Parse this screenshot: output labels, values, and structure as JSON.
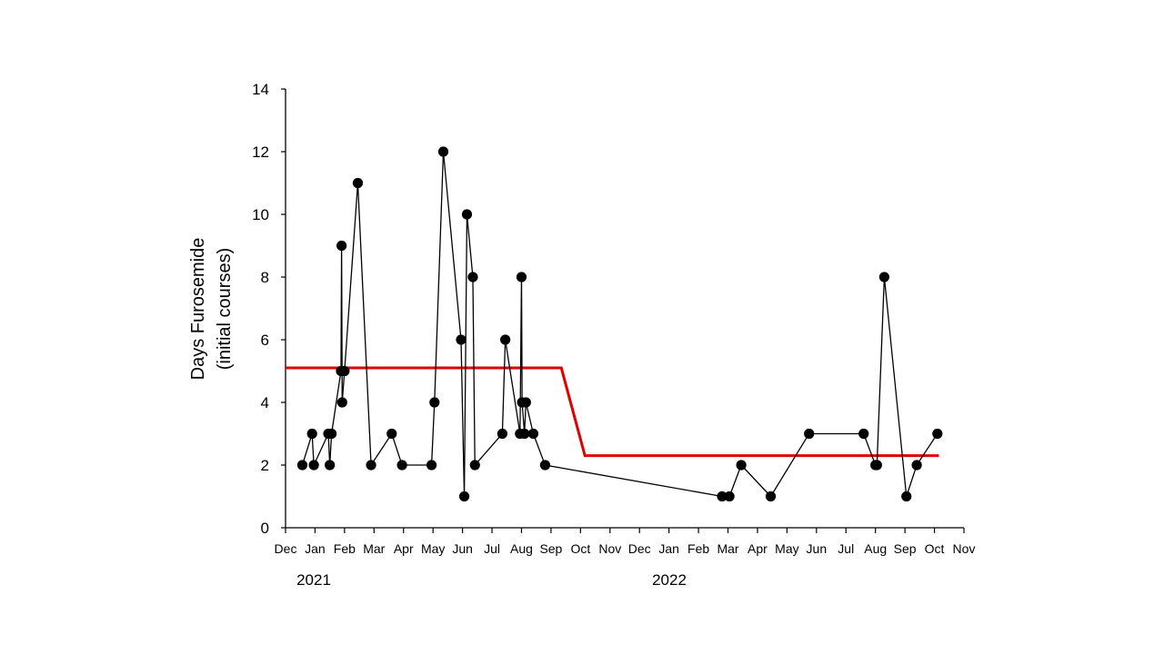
{
  "chart_data": {
    "type": "line",
    "title": "",
    "ylabel_line1": "Days Furosemide",
    "ylabel_line2": "(initial courses)",
    "xlabel": "",
    "ylim": [
      0,
      14
    ],
    "yticks": [
      0,
      2,
      4,
      6,
      8,
      10,
      12,
      14
    ],
    "x_ticks": [
      "Dec",
      "Jan",
      "Feb",
      "Mar",
      "Apr",
      "May",
      "Jun",
      "Jul",
      "Aug",
      "Sep",
      "Oct",
      "Nov",
      "Dec",
      "Jan",
      "Feb",
      "Mar",
      "Apr",
      "May",
      "Jun",
      "Jul",
      "Aug",
      "Sep",
      "Oct",
      "Nov"
    ],
    "year_labels": [
      "2021",
      "2022"
    ],
    "grid": false,
    "series": [
      {
        "x": [
          0.57,
          0.9,
          0.96,
          1.45,
          1.5,
          1.56,
          1.88,
          1.9,
          1.92,
          2.0,
          2.45,
          2.9,
          3.6,
          3.95,
          4.95,
          5.05,
          5.35,
          5.95,
          6.06,
          6.15,
          6.35,
          6.42,
          7.35,
          7.45,
          7.95,
          8.0,
          8.02,
          8.1,
          8.15,
          8.4,
          8.8,
          14.8,
          15.05,
          15.45,
          16.45,
          17.75,
          19.6,
          20.0,
          20.05,
          20.3,
          21.05,
          21.4,
          22.1
        ],
        "y": [
          2,
          3,
          2,
          3,
          2,
          3,
          5,
          9,
          4,
          5,
          11,
          2,
          3,
          2,
          2,
          4,
          12,
          6,
          1,
          10,
          8,
          2,
          3,
          6,
          3,
          8,
          4,
          3,
          4,
          3,
          2,
          1,
          1,
          2,
          1,
          3,
          3,
          2,
          2,
          8,
          1,
          2,
          3
        ],
        "marker": "circle",
        "color": "#000000"
      }
    ],
    "reference_line": {
      "color": "#e00000",
      "points": [
        [
          0,
          5.1
        ],
        [
          9.35,
          5.1
        ],
        [
          10.15,
          2.3
        ],
        [
          22.15,
          2.3
        ]
      ]
    }
  }
}
